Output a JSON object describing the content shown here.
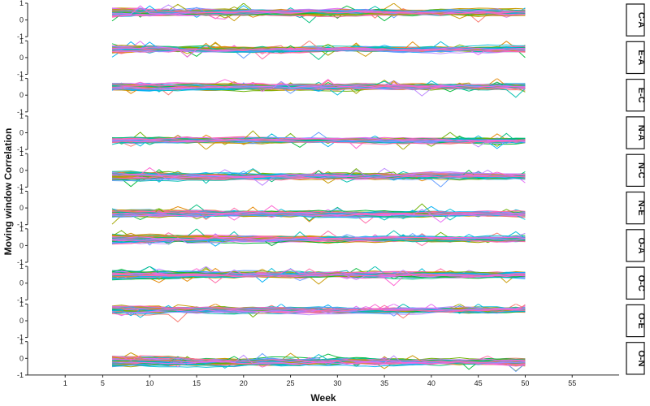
{
  "chart_data": {
    "type": "line",
    "title": "",
    "xlabel": "Week",
    "ylabel": "Moving window Correlation",
    "xlim": [
      -3,
      60
    ],
    "ylim": [
      -1,
      1
    ],
    "x_ticks": [
      1,
      5,
      10,
      15,
      20,
      25,
      30,
      35,
      40,
      45,
      50,
      55
    ],
    "y_ticks": [
      -1,
      0,
      1
    ],
    "x_range_data": [
      6,
      50
    ],
    "lines_per_panel": 60,
    "grid": false,
    "legend": "none",
    "palette": [
      "#F8766D",
      "#E58700",
      "#C99800",
      "#A3A500",
      "#6BB100",
      "#00BA38",
      "#00BF7D",
      "#00C0AF",
      "#00BCD8",
      "#00B0F6",
      "#619CFF",
      "#B983FF",
      "#E76BF3",
      "#FD61D1",
      "#FF67A4"
    ],
    "panels": [
      {
        "label": "C-A",
        "mean": 0.45,
        "spread": 0.28
      },
      {
        "label": "E-A",
        "mean": 0.5,
        "spread": 0.22
      },
      {
        "label": "E-C",
        "mean": 0.5,
        "spread": 0.22
      },
      {
        "label": "N-A",
        "mean": -0.45,
        "spread": 0.15
      },
      {
        "label": "N-C",
        "mean": -0.35,
        "spread": 0.28
      },
      {
        "label": "N-E",
        "mean": -0.35,
        "spread": 0.25
      },
      {
        "label": "O-A",
        "mean": 0.4,
        "spread": 0.3
      },
      {
        "label": "O-C",
        "mean": 0.5,
        "spread": 0.3
      },
      {
        "label": "O-E",
        "mean": 0.65,
        "spread": 0.22
      },
      {
        "label": "O-N",
        "mean": -0.2,
        "spread": 0.35
      }
    ]
  }
}
